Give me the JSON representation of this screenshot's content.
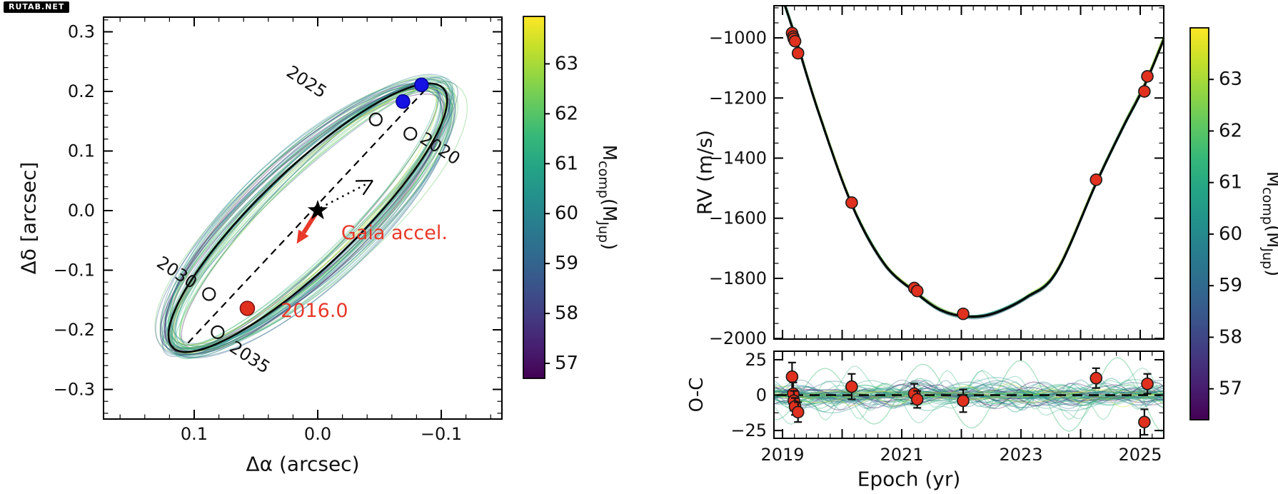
{
  "watermark": "RUTAB.NET",
  "palette": {
    "red_marker": "#e0301e",
    "red_marker_edge": "#7a1010",
    "blue_marker": "#1612e3",
    "blue_marker_edge": "#00008b",
    "annotation_red": "#e8392a",
    "line_black": "#000000",
    "colormap": "viridis"
  },
  "chart_data": [
    {
      "id": "astrometric_orbit",
      "type": "line",
      "title": "",
      "xlabel": "Δα (arcsec)",
      "ylabel": "Δδ [arcsec]",
      "xlim": [
        0.1734,
        -0.1491
      ],
      "ylim": [
        -0.3497,
        0.3246
      ],
      "xticks": [
        0.1,
        0.0,
        -0.1
      ],
      "xtick_labels": [
        "0.1",
        "0.0",
        "−0.1"
      ],
      "yticks": [
        0.3,
        0.2,
        0.1,
        0.0,
        -0.1,
        -0.2,
        -0.3
      ],
      "ytick_labels": [
        "0.3",
        "0.2",
        "0.1",
        "0.0",
        "−0.1",
        "−0.2",
        "−0.3"
      ],
      "minor_step_x": 0.02,
      "minor_step_y": 0.02,
      "grid": false,
      "best_fit_orbit": {
        "center": [
          0.008,
          -0.012
        ],
        "semi_major": 0.247,
        "semi_minor": 0.05,
        "major_axis_dir": [
          -0.418,
          0.908
        ]
      },
      "n_sample_orbits": 48,
      "epoch_markers": [
        {
          "label": "2020",
          "pos": [
            -0.075,
            0.129
          ],
          "label_pos": [
            -0.099,
            0.104
          ],
          "label_rotation": 33
        },
        {
          "label": "2025",
          "pos": [
            -0.047,
            0.153
          ],
          "label_pos": [
            0.009,
            0.216
          ],
          "label_rotation": 33
        },
        {
          "label": "2030",
          "pos": [
            0.088,
            -0.14
          ],
          "label_pos": [
            0.114,
            -0.104
          ],
          "label_rotation": 33
        },
        {
          "label": "2035",
          "pos": [
            0.081,
            -0.204
          ],
          "label_pos": [
            0.055,
            -0.246
          ],
          "label_rotation": 33
        }
      ],
      "blue_points": [
        [
          -0.069,
          0.183
        ],
        [
          -0.084,
          0.211
        ]
      ],
      "ref_point": {
        "label": "2016.0",
        "pos": [
          0.057,
          -0.164
        ],
        "label_pos": [
          0.03,
          -0.168
        ]
      },
      "star_pos": [
        0.0,
        0.0
      ],
      "dashed_line": [
        [
          0.105,
          -0.222
        ],
        [
          -0.088,
          0.205
        ]
      ],
      "dotted_arrow": {
        "from": [
          0.0,
          0.0
        ],
        "to": [
          -0.0445,
          0.0503
        ]
      },
      "gaia_arrow": {
        "from": [
          0.0,
          0.0
        ],
        "to": [
          0.017,
          -0.0555
        ],
        "label": "Gaia accel.",
        "label_pos": [
          -0.019,
          -0.038
        ]
      }
    },
    {
      "id": "rv_curve",
      "type": "line",
      "ylabel": "RV (m/s)",
      "xlim": [
        2018.856,
        2025.395
      ],
      "ylim": [
        -2002,
        -893
      ],
      "yticks": [
        -1000,
        -1200,
        -1400,
        -1600,
        -1800,
        -2000
      ],
      "ytick_labels": [
        "−1000",
        "−1200",
        "−1400",
        "−1600",
        "−1800",
        "−2000"
      ],
      "x_major_step": 1,
      "x_minor_step": 0.2,
      "y_minor_step": 50,
      "grid": false,
      "n_sample_curves": 30,
      "curve": [
        [
          2019.02,
          -880
        ],
        [
          2019.21,
          -995
        ],
        [
          2019.6,
          -1245
        ],
        [
          2020.16,
          -1554
        ],
        [
          2020.7,
          -1750
        ],
        [
          2021.22,
          -1845
        ],
        [
          2021.65,
          -1905
        ],
        [
          2022.1,
          -1927
        ],
        [
          2022.55,
          -1916
        ],
        [
          2023.1,
          -1862
        ],
        [
          2023.6,
          -1777
        ],
        [
          2024.26,
          -1484
        ],
        [
          2024.7,
          -1302
        ],
        [
          2025.07,
          -1159
        ],
        [
          2025.4,
          -1002
        ]
      ],
      "points": [
        [
          2019.16,
          -984
        ],
        [
          2019.18,
          -996
        ],
        [
          2019.19,
          -1003
        ],
        [
          2019.21,
          -1011
        ],
        [
          2019.26,
          -1051
        ],
        [
          2020.16,
          -1548
        ],
        [
          2021.21,
          -1832
        ],
        [
          2021.26,
          -1842
        ],
        [
          2022.03,
          -1918
        ],
        [
          2024.26,
          -1472
        ],
        [
          2025.07,
          -1178
        ],
        [
          2025.12,
          -1128
        ]
      ]
    },
    {
      "id": "rv_residuals",
      "type": "scatter",
      "ylabel": "O-C",
      "xlabel": "Epoch (yr)",
      "xlim": [
        2018.856,
        2025.395
      ],
      "ylim": [
        -30.5,
        31
      ],
      "yticks": [
        25,
        0,
        -25
      ],
      "ytick_labels": [
        "25",
        "0",
        "−25"
      ],
      "xticks": [
        2019,
        2021,
        2023,
        2025
      ],
      "xtick_labels": [
        "2019",
        "2021",
        "2023",
        "2025"
      ],
      "x_major_step": 1,
      "x_minor_step": 0.2,
      "y_minor_step": 12.5,
      "zero_line": true,
      "n_sample_curves": 60,
      "points": [
        [
          2019.16,
          13,
          10
        ],
        [
          2019.18,
          1,
          8
        ],
        [
          2019.19,
          -4,
          7
        ],
        [
          2019.21,
          -8,
          6
        ],
        [
          2019.26,
          -12,
          7
        ],
        [
          2020.16,
          6,
          9
        ],
        [
          2021.21,
          1,
          7
        ],
        [
          2021.26,
          -3,
          6
        ],
        [
          2022.03,
          -4,
          8
        ],
        [
          2024.26,
          12,
          7
        ],
        [
          2025.07,
          -19,
          9
        ],
        [
          2025.12,
          8,
          7
        ]
      ]
    }
  ],
  "colorbars": [
    {
      "id": "left",
      "ticks": [
        63,
        62,
        61,
        60,
        59,
        58,
        57
      ],
      "vmin": 56.7,
      "vmax": 63.95,
      "label_parts": [
        {
          "t": "M",
          "sub": false
        },
        {
          "t": "comp",
          "sub": true
        },
        {
          "t": "(M",
          "sub": false
        },
        {
          "t": "Jup",
          "sub": true
        },
        {
          "t": ")",
          "sub": false
        }
      ]
    },
    {
      "id": "right",
      "ticks": [
        63,
        62,
        61,
        60,
        59,
        58,
        57
      ],
      "vmin": 56.4,
      "vmax": 64.0,
      "label_parts": [
        {
          "t": "M",
          "sub": false
        },
        {
          "t": "comp",
          "sub": true
        },
        {
          "t": "(M",
          "sub": false
        },
        {
          "t": "Jup",
          "sub": true
        },
        {
          "t": ")",
          "sub": false
        }
      ]
    }
  ]
}
